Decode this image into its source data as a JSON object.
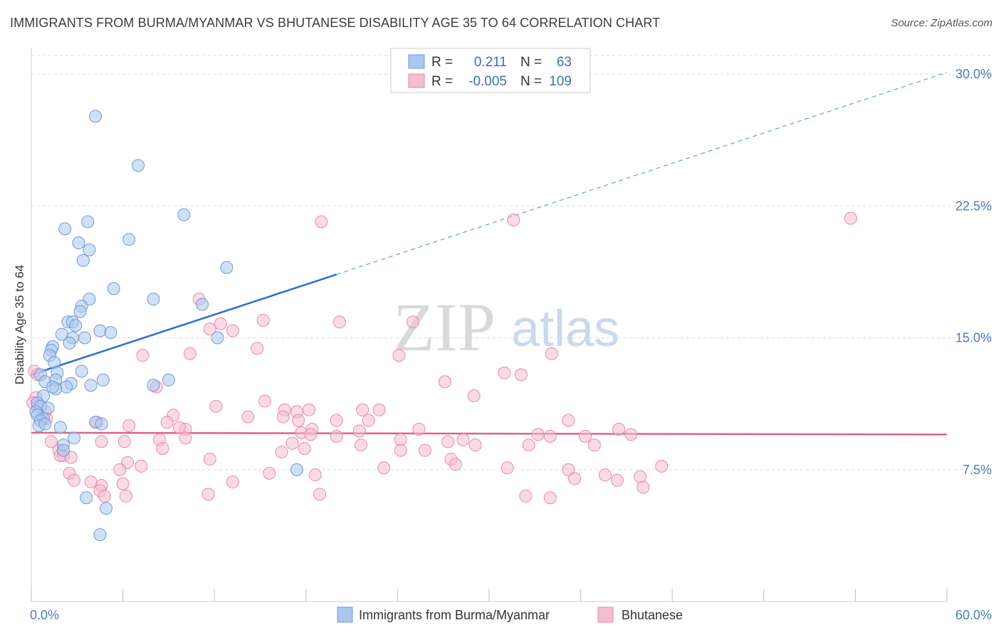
{
  "title": "IMMIGRANTS FROM BURMA/MYANMAR VS BHUTANESE DISABILITY AGE 35 TO 64 CORRELATION CHART",
  "source": "Source: ZipAtlas.com",
  "watermark": {
    "zip": "ZIP",
    "atlas": "atlas"
  },
  "colors": {
    "blue_fill": "#a9c8f0",
    "blue_stroke": "#6f9ad8",
    "blue_line": "#2a6fd0",
    "pink_fill": "#f6bcd0",
    "pink_stroke": "#e88aab",
    "pink_line": "#e0608d",
    "tick_label": "#4a7cc7",
    "grid": "#dddddd"
  },
  "legend": {
    "rows": [
      {
        "r_label": "R =",
        "r_value": "0.211",
        "n_label": "N =",
        "n_value": "63"
      },
      {
        "r_label": "R =",
        "r_value": "-0.005",
        "n_label": "N =",
        "n_value": "109"
      }
    ]
  },
  "bottom_legend": [
    "Immigrants from Burma/Myanmar",
    "Bhutanese"
  ],
  "chart_data": {
    "type": "scatter",
    "title": "IMMIGRANTS FROM BURMA/MYANMAR VS BHUTANESE DISABILITY AGE 35 TO 64 CORRELATION CHART",
    "xlabel": "",
    "ylabel": "Disability Age 35 to 64",
    "xlim": [
      0,
      60
    ],
    "ylim": [
      0,
      31.5
    ],
    "x_tick_labels": [
      "0.0%",
      "60.0%"
    ],
    "y_ticks": [
      7.5,
      15.0,
      22.5,
      30.0
    ],
    "y_tick_labels": [
      "7.5%",
      "15.0%",
      "22.5%",
      "30.0%"
    ],
    "grid": "horizontal dashed",
    "legend_position": "top-center",
    "series": [
      {
        "name": "Immigrants from Burma/Myanmar",
        "color": "#a9c8f0",
        "trend": {
          "x": [
            0,
            20
          ],
          "y": [
            12.9,
            18.6
          ],
          "extended_to": [
            60,
            30.1
          ]
        },
        "points": [
          [
            4.2,
            27.6
          ],
          [
            7.0,
            24.8
          ],
          [
            10.0,
            22.0
          ],
          [
            3.7,
            21.6
          ],
          [
            2.2,
            21.2
          ],
          [
            6.4,
            20.6
          ],
          [
            3.1,
            20.4
          ],
          [
            3.8,
            20.0
          ],
          [
            3.4,
            19.4
          ],
          [
            12.8,
            19.0
          ],
          [
            5.4,
            17.8
          ],
          [
            8.0,
            17.2
          ],
          [
            3.8,
            17.2
          ],
          [
            11.2,
            16.9
          ],
          [
            3.3,
            16.8
          ],
          [
            3.2,
            16.5
          ],
          [
            2.4,
            15.9
          ],
          [
            2.7,
            15.9
          ],
          [
            2.9,
            15.7
          ],
          [
            4.5,
            15.4
          ],
          [
            5.2,
            15.3
          ],
          [
            2.0,
            15.2
          ],
          [
            12.2,
            15.0
          ],
          [
            2.7,
            15.0
          ],
          [
            3.5,
            15.0
          ],
          [
            2.5,
            14.7
          ],
          [
            1.4,
            14.5
          ],
          [
            1.3,
            14.3
          ],
          [
            1.2,
            14.0
          ],
          [
            1.5,
            13.6
          ],
          [
            3.3,
            13.1
          ],
          [
            1.7,
            13.0
          ],
          [
            0.6,
            12.9
          ],
          [
            4.7,
            12.6
          ],
          [
            9.0,
            12.6
          ],
          [
            1.6,
            12.6
          ],
          [
            0.9,
            12.5
          ],
          [
            2.6,
            12.4
          ],
          [
            8.0,
            12.3
          ],
          [
            3.9,
            12.3
          ],
          [
            2.3,
            12.2
          ],
          [
            1.6,
            12.1
          ],
          [
            1.4,
            12.2
          ],
          [
            0.8,
            11.7
          ],
          [
            0.4,
            11.3
          ],
          [
            0.6,
            11.1
          ],
          [
            1.1,
            11.0
          ],
          [
            0.3,
            10.8
          ],
          [
            0.4,
            10.6
          ],
          [
            0.8,
            10.4
          ],
          [
            0.6,
            10.3
          ],
          [
            4.2,
            10.2
          ],
          [
            4.6,
            10.1
          ],
          [
            0.5,
            10.0
          ],
          [
            0.9,
            10.1
          ],
          [
            1.9,
            9.9
          ],
          [
            2.8,
            9.3
          ],
          [
            2.1,
            8.9
          ],
          [
            2.1,
            8.6
          ],
          [
            17.4,
            7.5
          ],
          [
            3.6,
            5.9
          ],
          [
            4.9,
            5.3
          ],
          [
            4.5,
            3.8
          ]
        ]
      },
      {
        "name": "Bhutanese",
        "color": "#f6bcd0",
        "trend": {
          "x": [
            0,
            60
          ],
          "y": [
            9.6,
            9.5
          ]
        },
        "points": [
          [
            19.0,
            21.6
          ],
          [
            31.6,
            21.7
          ],
          [
            53.7,
            21.8
          ],
          [
            11.0,
            17.2
          ],
          [
            15.2,
            16.0
          ],
          [
            12.4,
            15.8
          ],
          [
            11.7,
            15.5
          ],
          [
            13.2,
            15.4
          ],
          [
            20.2,
            15.9
          ],
          [
            25.0,
            15.9
          ],
          [
            14.8,
            14.4
          ],
          [
            7.3,
            14.0
          ],
          [
            10.4,
            14.1
          ],
          [
            24.1,
            14.0
          ],
          [
            34.1,
            14.1
          ],
          [
            0.2,
            13.1
          ],
          [
            0.4,
            12.9
          ],
          [
            31.0,
            13.0
          ],
          [
            32.1,
            12.9
          ],
          [
            27.1,
            12.5
          ],
          [
            8.2,
            12.2
          ],
          [
            0.3,
            11.6
          ],
          [
            0.1,
            11.3
          ],
          [
            0.4,
            11.1
          ],
          [
            0.9,
            10.8
          ],
          [
            15.3,
            11.4
          ],
          [
            29.0,
            11.7
          ],
          [
            12.1,
            11.1
          ],
          [
            1.0,
            10.4
          ],
          [
            16.6,
            10.9
          ],
          [
            17.4,
            10.8
          ],
          [
            18.2,
            10.9
          ],
          [
            21.7,
            10.9
          ],
          [
            22.8,
            10.9
          ],
          [
            14.2,
            10.5
          ],
          [
            16.5,
            10.5
          ],
          [
            9.3,
            10.6
          ],
          [
            4.3,
            10.2
          ],
          [
            8.9,
            10.2
          ],
          [
            17.5,
            10.3
          ],
          [
            20.0,
            10.3
          ],
          [
            22.1,
            10.3
          ],
          [
            35.2,
            10.3
          ],
          [
            6.4,
            10.0
          ],
          [
            10.1,
            9.8
          ],
          [
            9.7,
            9.9
          ],
          [
            17.7,
            9.6
          ],
          [
            18.4,
            9.8
          ],
          [
            21.5,
            9.7
          ],
          [
            25.4,
            9.8
          ],
          [
            18.3,
            9.5
          ],
          [
            20.0,
            9.4
          ],
          [
            33.2,
            9.5
          ],
          [
            34.0,
            9.4
          ],
          [
            38.5,
            9.8
          ],
          [
            39.3,
            9.5
          ],
          [
            24.2,
            9.2
          ],
          [
            27.3,
            9.1
          ],
          [
            28.3,
            9.2
          ],
          [
            4.6,
            9.1
          ],
          [
            6.1,
            9.1
          ],
          [
            1.3,
            9.1
          ],
          [
            17.1,
            9.0
          ],
          [
            8.4,
            9.2
          ],
          [
            10.1,
            9.3
          ],
          [
            36.3,
            9.4
          ],
          [
            24.2,
            8.6
          ],
          [
            36.9,
            8.9
          ],
          [
            21.6,
            8.9
          ],
          [
            29.1,
            8.9
          ],
          [
            32.6,
            8.9
          ],
          [
            1.8,
            8.6
          ],
          [
            2.1,
            8.3
          ],
          [
            8.6,
            8.7
          ],
          [
            16.4,
            8.5
          ],
          [
            25.8,
            8.6
          ],
          [
            27.5,
            8.1
          ],
          [
            1.9,
            8.3
          ],
          [
            2.6,
            8.2
          ],
          [
            17.9,
            8.7
          ],
          [
            6.3,
            7.9
          ],
          [
            7.2,
            7.7
          ],
          [
            11.7,
            8.1
          ],
          [
            27.8,
            7.8
          ],
          [
            23.1,
            7.6
          ],
          [
            31.2,
            7.6
          ],
          [
            41.3,
            7.7
          ],
          [
            2.5,
            7.3
          ],
          [
            5.8,
            7.5
          ],
          [
            15.6,
            7.3
          ],
          [
            18.6,
            7.2
          ],
          [
            35.2,
            7.5
          ],
          [
            35.6,
            7.0
          ],
          [
            37.6,
            7.2
          ],
          [
            38.4,
            6.9
          ],
          [
            39.9,
            7.1
          ],
          [
            2.8,
            6.9
          ],
          [
            6.0,
            6.7
          ],
          [
            4.6,
            6.6
          ],
          [
            3.9,
            6.8
          ],
          [
            13.2,
            6.8
          ],
          [
            40.1,
            6.5
          ],
          [
            4.5,
            6.3
          ],
          [
            4.8,
            6.0
          ],
          [
            6.2,
            6.0
          ],
          [
            11.6,
            6.1
          ],
          [
            18.9,
            6.1
          ],
          [
            32.4,
            6.0
          ],
          [
            34.0,
            5.9
          ]
        ]
      }
    ]
  }
}
